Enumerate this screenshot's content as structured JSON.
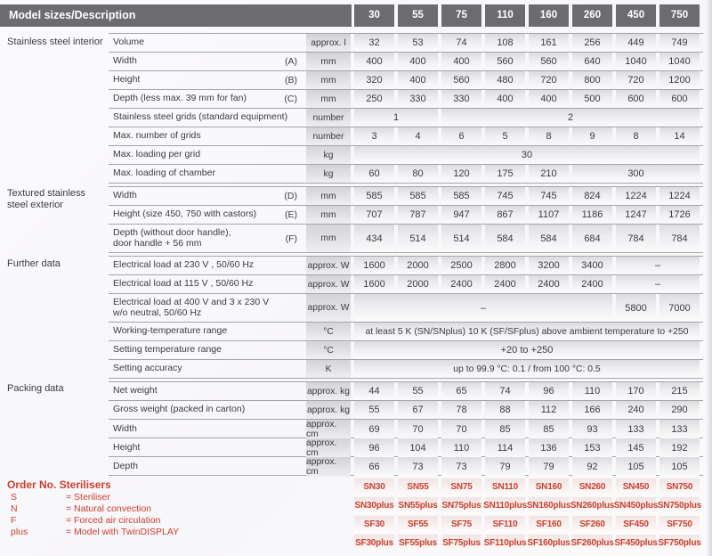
{
  "colors": {
    "header_bg": "#6c6b70",
    "accent_red": "#c9402f",
    "text": "#3c3b40",
    "line": "#a5a5a9"
  },
  "header": {
    "title": "Model sizes/Description"
  },
  "table": {
    "models": [
      "30",
      "55",
      "75",
      "110",
      "160",
      "260",
      "450",
      "750"
    ],
    "sections": [
      {
        "label": "Stainless steel interior"
      },
      {
        "label": "Textured stainless steel exterior"
      },
      {
        "label": "Further data"
      },
      {
        "label": "Packing data"
      }
    ],
    "rows": [
      {
        "sec": 0,
        "label": "Volume",
        "letter": "",
        "unit": "approx. l",
        "cells": [
          "32",
          "53",
          "74",
          "108",
          "161",
          "256",
          "449",
          "749"
        ]
      },
      {
        "sec": 0,
        "label": "Width",
        "letter": "(A)",
        "unit": "mm",
        "cells": [
          "400",
          "400",
          "400",
          "560",
          "560",
          "640",
          "1040",
          "1040"
        ]
      },
      {
        "sec": 0,
        "label": "Height",
        "letter": "(B)",
        "unit": "mm",
        "cells": [
          "320",
          "400",
          "560",
          "480",
          "720",
          "800",
          "720",
          "1200"
        ]
      },
      {
        "sec": 0,
        "label": "Depth (less max. 39 mm for fan)",
        "letter": "(C)",
        "unit": "mm",
        "cells": [
          "250",
          "330",
          "330",
          "400",
          "400",
          "500",
          "600",
          "600"
        ]
      },
      {
        "sec": 0,
        "label": "Stainless steel grids (standard equipment)",
        "letter": "",
        "unit": "number",
        "cells": [
          {
            "v": "1",
            "span": 2
          },
          {
            "v": "2",
            "span": 6
          }
        ]
      },
      {
        "sec": 0,
        "label": "Max. number of grids",
        "letter": "",
        "unit": "number",
        "cells": [
          "3",
          "4",
          "6",
          "5",
          "8",
          "9",
          "8",
          "14"
        ]
      },
      {
        "sec": 0,
        "label": "Max. loading per grid",
        "letter": "",
        "unit": "kg",
        "cells": [
          {
            "v": "30",
            "span": 8
          }
        ]
      },
      {
        "sec": 0,
        "label": "Max. loading of chamber",
        "letter": "",
        "unit": "kg",
        "cells": [
          "60",
          "80",
          "120",
          "175",
          "210",
          {
            "v": "300",
            "span": 3
          }
        ]
      },
      {
        "sec": 1,
        "label": "Width",
        "letter": "(D)",
        "unit": "mm",
        "cells": [
          "585",
          "585",
          "585",
          "745",
          "745",
          "824",
          "1224",
          "1224"
        ]
      },
      {
        "sec": 1,
        "label": "Height (size 450, 750 with castors)",
        "letter": "(E)",
        "unit": "mm",
        "cells": [
          "707",
          "787",
          "947",
          "867",
          "1107",
          "1186",
          "1247",
          "1726"
        ]
      },
      {
        "sec": 1,
        "label": "Depth (without door handle),\ndoor handle + 56 mm",
        "letter": "(F)",
        "unit": "mm",
        "tall": true,
        "cells": [
          "434",
          "514",
          "514",
          "584",
          "584",
          "684",
          "784",
          "784"
        ]
      },
      {
        "sec": 2,
        "label": "Electrical load at 230 V , 50/60 Hz",
        "letter": "",
        "unit": "approx. W",
        "cells": [
          "1600",
          "2000",
          "2500",
          "2800",
          "3200",
          "3400",
          {
            "v": "–",
            "span": 2
          }
        ]
      },
      {
        "sec": 2,
        "label": "Electrical load at 115 V , 50/60 Hz",
        "letter": "",
        "unit": "approx. W",
        "cells": [
          "1600",
          "2000",
          "2400",
          "2400",
          "2400",
          "2400",
          {
            "v": "–",
            "span": 2
          }
        ]
      },
      {
        "sec": 2,
        "label": "Electrical load at 400 V and 3 x 230 V\nw/o neutral, 50/60 Hz",
        "letter": "",
        "unit": "approx. W",
        "tall": true,
        "cells": [
          {
            "v": "–",
            "span": 6
          },
          "5800",
          "7000"
        ]
      },
      {
        "sec": 2,
        "label": "Working-temperature range",
        "letter": "",
        "unit": "°C",
        "cells": [
          {
            "v": "at least 5 K (SN/SNplus) 10 K (SF/SFplus) above ambient temperature to +250",
            "span": 8
          }
        ]
      },
      {
        "sec": 2,
        "label": "Setting temperature range",
        "letter": "",
        "unit": "°C",
        "cells": [
          {
            "v": "+20 to +250",
            "span": 8
          }
        ]
      },
      {
        "sec": 2,
        "label": "Setting accuracy",
        "letter": "",
        "unit": "K",
        "cells": [
          {
            "v": "up to 99.9 °C: 0.1 / from 100 °C: 0.5",
            "span": 8
          }
        ]
      },
      {
        "sec": 3,
        "label": "Net weight",
        "letter": "",
        "unit": "approx. kg",
        "cells": [
          "44",
          "55",
          "65",
          "74",
          "96",
          "110",
          "170",
          "215"
        ]
      },
      {
        "sec": 3,
        "label": "Gross weight (packed in carton)",
        "letter": "",
        "unit": "approx. kg",
        "cells": [
          "55",
          "67",
          "78",
          "88",
          "112",
          "166",
          "240",
          "290"
        ]
      },
      {
        "sec": 3,
        "label": "Width",
        "letter": "",
        "unit": "approx. cm",
        "cells": [
          "69",
          "70",
          "70",
          "85",
          "85",
          "93",
          "133",
          "133"
        ]
      },
      {
        "sec": 3,
        "label": "Height",
        "letter": "",
        "unit": "approx. cm",
        "cells": [
          "96",
          "104",
          "110",
          "114",
          "136",
          "153",
          "145",
          "192"
        ]
      },
      {
        "sec": 3,
        "label": "Depth",
        "letter": "",
        "unit": "approx. cm",
        "cells": [
          "66",
          "73",
          "73",
          "79",
          "79",
          "92",
          "105",
          "105"
        ]
      }
    ]
  },
  "orders": {
    "title": "Order No. Sterilisers",
    "legend": [
      {
        "key": "S",
        "desc": "= Steriliser"
      },
      {
        "key": "N",
        "desc": "= Natural convection"
      },
      {
        "key": "F",
        "desc": "= Forced air circulation"
      },
      {
        "key": "plus",
        "desc": "= Model with TwinDISPLAY"
      }
    ],
    "rows": [
      [
        "SN30",
        "SN55",
        "SN75",
        "SN110",
        "SN160",
        "SN260",
        "SN450",
        "SN750"
      ],
      [
        "SN30plus",
        "SN55plus",
        "SN75plus",
        "SN110plus",
        "SN160plus",
        "SN260plus",
        "SN450plus",
        "SN750plus"
      ],
      [
        "SF30",
        "SF55",
        "SF75",
        "SF110",
        "SF160",
        "SF260",
        "SF450",
        "SF750"
      ],
      [
        "SF30plus",
        "SF55plus",
        "SF75plus",
        "SF110plus",
        "SF160plus",
        "SF260plus",
        "SF450plus",
        "SF750plus"
      ]
    ]
  }
}
